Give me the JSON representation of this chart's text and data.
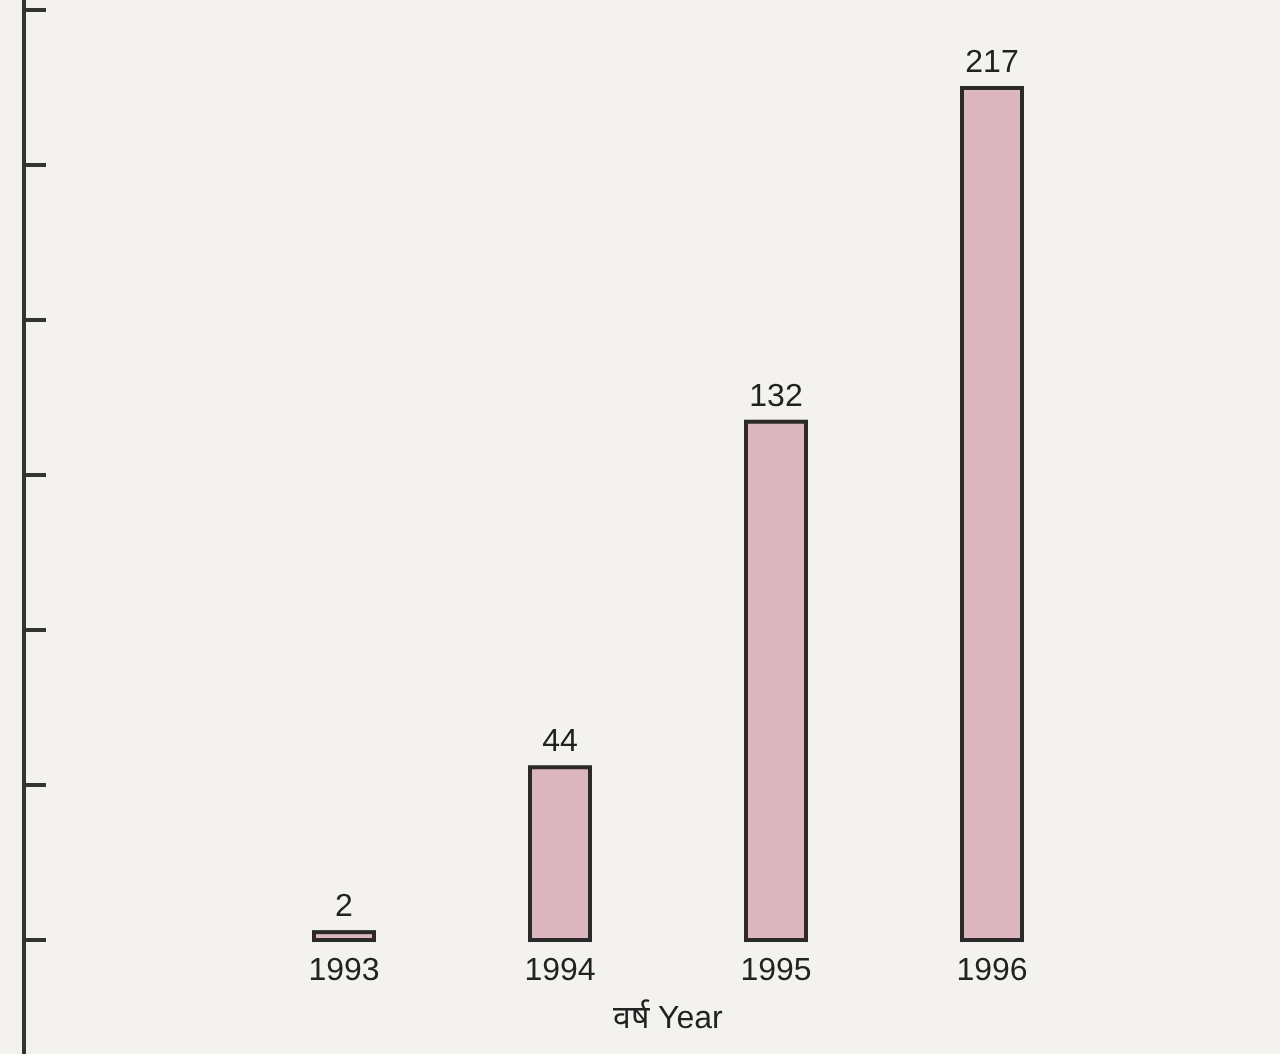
{
  "chart_data": {
    "type": "bar",
    "xlabel": "वर्ष Year",
    "categories": [
      "1993",
      "1994",
      "1995",
      "1996"
    ],
    "values": [
      2,
      44,
      132,
      217
    ],
    "color": "#dcb6bf",
    "tick_labels": "x",
    "data_labels": true
  }
}
